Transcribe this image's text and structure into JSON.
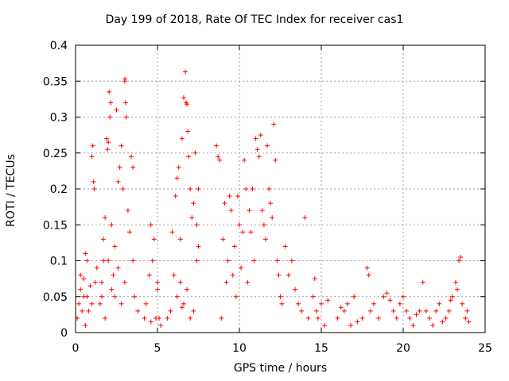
{
  "chart_data": {
    "type": "scatter",
    "title": "Day 199 of 2018, Rate Of TEC Index for receiver cas1",
    "xlabel": "GPS time / hours",
    "ylabel": "ROTI / TECUs",
    "xlim": [
      0,
      25
    ],
    "ylim": [
      0,
      0.4
    ],
    "xticks": [
      0,
      5,
      10,
      15,
      20,
      25
    ],
    "yticks": [
      0,
      0.05,
      0.1,
      0.15,
      0.2,
      0.25,
      0.3,
      0.35,
      0.4
    ],
    "ytick_labels": [
      "0",
      "0.05",
      "0.1",
      "0.15",
      "0.2",
      "0.25",
      "0.3",
      "0.35",
      "0.4"
    ],
    "grid": true,
    "marker": "+",
    "series": [
      {
        "name": "ROTI",
        "color": "#ff0000",
        "points": [
          [
            0.1,
            0.02
          ],
          [
            0.2,
            0.04
          ],
          [
            0.3,
            0.06
          ],
          [
            0.4,
            0.03
          ],
          [
            0.5,
            0.05
          ],
          [
            0.6,
            0.01
          ],
          [
            0.7,
            0.05
          ],
          [
            0.8,
            0.03
          ],
          [
            0.9,
            0.065
          ],
          [
            1.0,
            0.04
          ],
          [
            1.0,
            0.245
          ],
          [
            1.05,
            0.26
          ],
          [
            1.1,
            0.21
          ],
          [
            1.15,
            0.2
          ],
          [
            1.2,
            0.07
          ],
          [
            1.3,
            0.09
          ],
          [
            0.6,
            0.11
          ],
          [
            0.7,
            0.1
          ],
          [
            0.5,
            0.075
          ],
          [
            0.3,
            0.08
          ],
          [
            1.6,
            0.07
          ],
          [
            1.7,
            0.1
          ],
          [
            1.8,
            0.16
          ],
          [
            1.9,
            0.27
          ],
          [
            1.95,
            0.255
          ],
          [
            2.0,
            0.265
          ],
          [
            2.05,
            0.335
          ],
          [
            2.1,
            0.3
          ],
          [
            2.15,
            0.32
          ],
          [
            2.2,
            0.06
          ],
          [
            2.3,
            0.08
          ],
          [
            2.4,
            0.12
          ],
          [
            2.5,
            0.31
          ],
          [
            2.6,
            0.21
          ],
          [
            2.7,
            0.23
          ],
          [
            2.8,
            0.26
          ],
          [
            2.9,
            0.2
          ],
          [
            3.0,
            0.35
          ],
          [
            3.02,
            0.353
          ],
          [
            3.05,
            0.32
          ],
          [
            3.1,
            0.3
          ],
          [
            1.5,
            0.04
          ],
          [
            1.6,
            0.05
          ],
          [
            1.7,
            0.13
          ],
          [
            1.8,
            0.02
          ],
          [
            2.0,
            0.1
          ],
          [
            2.2,
            0.15
          ],
          [
            2.4,
            0.05
          ],
          [
            2.6,
            0.09
          ],
          [
            2.8,
            0.04
          ],
          [
            3.0,
            0.07
          ],
          [
            3.2,
            0.17
          ],
          [
            3.3,
            0.14
          ],
          [
            3.4,
            0.245
          ],
          [
            3.5,
            0.23
          ],
          [
            3.5,
            0.1
          ],
          [
            3.6,
            0.05
          ],
          [
            3.8,
            0.03
          ],
          [
            4.2,
            0.02
          ],
          [
            4.5,
            0.08
          ],
          [
            4.6,
            0.15
          ],
          [
            4.7,
            0.1
          ],
          [
            4.8,
            0.13
          ],
          [
            5.0,
            0.07
          ],
          [
            5.0,
            0.06
          ],
          [
            4.3,
            0.04
          ],
          [
            4.6,
            0.015
          ],
          [
            4.9,
            0.02
          ],
          [
            5.1,
            0.02
          ],
          [
            5.2,
            0.01
          ],
          [
            5.6,
            0.02
          ],
          [
            5.8,
            0.03
          ],
          [
            5.9,
            0.14
          ],
          [
            6.0,
            0.08
          ],
          [
            6.1,
            0.19
          ],
          [
            6.2,
            0.215
          ],
          [
            6.3,
            0.23
          ],
          [
            6.4,
            0.13
          ],
          [
            6.5,
            0.27
          ],
          [
            6.6,
            0.327
          ],
          [
            6.7,
            0.363
          ],
          [
            6.75,
            0.32
          ],
          [
            6.8,
            0.318
          ],
          [
            6.85,
            0.28
          ],
          [
            6.9,
            0.245
          ],
          [
            7.0,
            0.2
          ],
          [
            7.1,
            0.16
          ],
          [
            7.2,
            0.18
          ],
          [
            7.3,
            0.25
          ],
          [
            7.4,
            0.1
          ],
          [
            6.2,
            0.05
          ],
          [
            6.4,
            0.07
          ],
          [
            6.5,
            0.035
          ],
          [
            6.6,
            0.04
          ],
          [
            6.8,
            0.06
          ],
          [
            7.0,
            0.02
          ],
          [
            7.2,
            0.03
          ],
          [
            7.4,
            0.15
          ],
          [
            7.5,
            0.12
          ],
          [
            7.5,
            0.2
          ],
          [
            8.6,
            0.26
          ],
          [
            8.7,
            0.245
          ],
          [
            8.8,
            0.24
          ],
          [
            8.9,
            0.02
          ],
          [
            9.0,
            0.13
          ],
          [
            9.1,
            0.18
          ],
          [
            9.2,
            0.07
          ],
          [
            9.3,
            0.1
          ],
          [
            9.4,
            0.19
          ],
          [
            9.5,
            0.17
          ],
          [
            9.6,
            0.08
          ],
          [
            9.7,
            0.12
          ],
          [
            9.8,
            0.05
          ],
          [
            9.9,
            0.19
          ],
          [
            10.0,
            0.15
          ],
          [
            10.1,
            0.09
          ],
          [
            10.2,
            0.14
          ],
          [
            10.3,
            0.24
          ],
          [
            10.4,
            0.2
          ],
          [
            10.5,
            0.07
          ],
          [
            10.6,
            0.17
          ],
          [
            10.7,
            0.14
          ],
          [
            10.8,
            0.2
          ],
          [
            10.9,
            0.1
          ],
          [
            11.0,
            0.27
          ],
          [
            11.1,
            0.255
          ],
          [
            11.2,
            0.245
          ],
          [
            11.3,
            0.275
          ],
          [
            11.4,
            0.17
          ],
          [
            11.5,
            0.15
          ],
          [
            11.6,
            0.13
          ],
          [
            11.7,
            0.26
          ],
          [
            11.8,
            0.2
          ],
          [
            11.9,
            0.18
          ],
          [
            12.0,
            0.16
          ],
          [
            12.1,
            0.29
          ],
          [
            12.2,
            0.24
          ],
          [
            12.3,
            0.1
          ],
          [
            12.4,
            0.08
          ],
          [
            12.5,
            0.05
          ],
          [
            12.6,
            0.04
          ],
          [
            12.8,
            0.12
          ],
          [
            13.0,
            0.08
          ],
          [
            13.2,
            0.1
          ],
          [
            13.4,
            0.06
          ],
          [
            13.6,
            0.04
          ],
          [
            13.8,
            0.03
          ],
          [
            14.0,
            0.16
          ],
          [
            14.2,
            0.02
          ],
          [
            14.5,
            0.05
          ],
          [
            14.6,
            0.075
          ],
          [
            14.7,
            0.03
          ],
          [
            14.8,
            0.02
          ],
          [
            15.0,
            0.04
          ],
          [
            15.2,
            0.01
          ],
          [
            15.4,
            0.045
          ],
          [
            16.0,
            0.02
          ],
          [
            16.2,
            0.035
          ],
          [
            16.4,
            0.03
          ],
          [
            16.6,
            0.04
          ],
          [
            16.8,
            0.01
          ],
          [
            17.0,
            0.05
          ],
          [
            17.2,
            0.015
          ],
          [
            17.5,
            0.02
          ],
          [
            17.8,
            0.09
          ],
          [
            17.9,
            0.08
          ],
          [
            18.0,
            0.03
          ],
          [
            18.2,
            0.04
          ],
          [
            18.5,
            0.02
          ],
          [
            18.8,
            0.05
          ],
          [
            19.0,
            0.055
          ],
          [
            19.2,
            0.045
          ],
          [
            19.4,
            0.03
          ],
          [
            19.6,
            0.02
          ],
          [
            19.8,
            0.04
          ],
          [
            20.0,
            0.05
          ],
          [
            20.2,
            0.03
          ],
          [
            20.4,
            0.02
          ],
          [
            20.6,
            0.01
          ],
          [
            20.8,
            0.025
          ],
          [
            21.0,
            0.03
          ],
          [
            21.2,
            0.07
          ],
          [
            21.4,
            0.03
          ],
          [
            21.6,
            0.02
          ],
          [
            21.8,
            0.01
          ],
          [
            22.0,
            0.03
          ],
          [
            22.2,
            0.04
          ],
          [
            22.4,
            0.015
          ],
          [
            22.6,
            0.02
          ],
          [
            22.8,
            0.03
          ],
          [
            23.0,
            0.05
          ],
          [
            23.2,
            0.07
          ],
          [
            23.4,
            0.1
          ],
          [
            23.5,
            0.105
          ],
          [
            23.6,
            0.04
          ],
          [
            23.8,
            0.02
          ],
          [
            24.0,
            0.015
          ],
          [
            23.9,
            0.03
          ],
          [
            23.3,
            0.06
          ],
          [
            22.9,
            0.045
          ]
        ]
      }
    ]
  }
}
